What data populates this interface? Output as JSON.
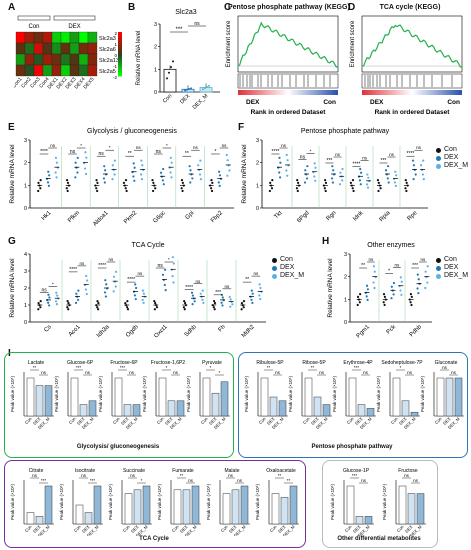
{
  "panels": {
    "A": "A",
    "B": "B",
    "C": "C",
    "D": "D",
    "E": "E",
    "F": "F",
    "G": "G",
    "H": "H",
    "I": "I"
  },
  "heatmap": {
    "groups": [
      "Con",
      "DEX"
    ],
    "rows": [
      "Slc2a3",
      "Slc2a6",
      "Slc2a13",
      "Slc2a5"
    ],
    "cols": [
      "Con1",
      "Con2",
      "Con3",
      "Con4",
      "DEX1",
      "DEX2",
      "DEX3",
      "DEX4",
      "DEX5"
    ],
    "values": [
      [
        2,
        1,
        0.5,
        1.2,
        -1.5,
        -1.8,
        -1,
        -2,
        -1.2
      ],
      [
        0.3,
        -0.5,
        1.5,
        0.2,
        -0.8,
        0.4,
        -1,
        0.6,
        0.9
      ],
      [
        -1,
        0.8,
        -0.3,
        1,
        0.5,
        -0.6,
        0.2,
        -1.2,
        0.7
      ],
      [
        0.5,
        -0.2,
        1.8,
        -1,
        0.9,
        -1.5,
        0.3,
        -0.5,
        1.1
      ]
    ],
    "scale_ticks": [
      "2",
      "1",
      "0",
      "-1",
      "-2"
    ]
  },
  "panelB": {
    "title": "Slc2a3",
    "ylabel": "Relative mRNA level",
    "categories": [
      "Con",
      "DEX",
      "DEX_M"
    ],
    "values": [
      1.0,
      0.12,
      0.2
    ],
    "yticks": [
      "0",
      "1",
      "2",
      "3"
    ],
    "sig": [
      "***",
      "ns"
    ]
  },
  "panelC": {
    "title": "Pentose phosphate pathway (KEGG)",
    "ylabel": "Enrichment score",
    "xlabel": "Rank in ordered Dataset",
    "left": "DEX",
    "right": "Con"
  },
  "panelD": {
    "title": "TCA cycle (KEGG)",
    "ylabel": "Enrichment score",
    "xlabel": "Rank in ordered Dataset",
    "left": "DEX",
    "right": "Con"
  },
  "legend": [
    "Con",
    "DEX",
    "DEX_M"
  ],
  "colors": {
    "con": "#111111",
    "dex": "#1f77b4",
    "dexm": "#5bb0e8",
    "green": "#22b14c",
    "purple": "#7030a0",
    "blue": "#2e75b6"
  },
  "chart_data": [
    {
      "type": "scatter",
      "panel": "E",
      "title": "Glycolysis / gluconeogenesis",
      "ylabel": "Relative mRNA level",
      "categories": [
        "Hk1",
        "Pfkm",
        "Aldoa1",
        "Pkm2",
        "G6pc",
        "Gpi",
        "Fbp2"
      ],
      "series": [
        {
          "name": "Con",
          "values": [
            1.0,
            1.0,
            1.0,
            1.0,
            1.0,
            1.0,
            1.0
          ]
        },
        {
          "name": "DEX",
          "values": [
            1.3,
            1.8,
            1.5,
            1.6,
            1.4,
            1.5,
            1.3
          ]
        },
        {
          "name": "DEX_M",
          "values": [
            1.8,
            2.0,
            1.7,
            1.7,
            1.8,
            1.7,
            1.9
          ]
        }
      ],
      "sig": [
        "****",
        "ns",
        "ns",
        "**",
        "ns",
        "**",
        "*"
      ],
      "ylim": [
        0,
        3
      ],
      "yticks": [
        "0",
        "1",
        "2",
        "3"
      ]
    },
    {
      "type": "scatter",
      "panel": "F",
      "title": "Pentose phosphate pathway",
      "ylabel": "Relative mRNA level",
      "categories": [
        "Tkt",
        "6Pgd",
        "Rgn",
        "Idnk",
        "Rpia",
        "Rpe"
      ],
      "series": [
        {
          "name": "Con",
          "values": [
            1.0,
            1.0,
            1.0,
            1.0,
            1.0,
            1.0
          ]
        },
        {
          "name": "DEX",
          "values": [
            1.8,
            1.5,
            1.5,
            1.4,
            1.5,
            1.7
          ]
        },
        {
          "name": "DEX_M",
          "values": [
            1.9,
            1.6,
            1.4,
            1.2,
            1.3,
            1.7
          ]
        }
      ],
      "sig": [
        "****",
        "ns",
        "***",
        "****",
        "***",
        "****"
      ],
      "ylim": [
        0,
        3
      ],
      "yticks": [
        "0",
        "1",
        "2",
        "3"
      ]
    },
    {
      "type": "scatter",
      "panel": "G",
      "title": "TCA Cycle",
      "ylabel": "Relative mRNA level",
      "categories": [
        "Cs",
        "Aco1",
        "Idh3a",
        "Ogdh",
        "Oxct1",
        "Sdhb",
        "Fh",
        "Mdh2"
      ],
      "series": [
        {
          "name": "Con",
          "values": [
            1.0,
            1.0,
            1.0,
            1.0,
            1.0,
            1.0,
            1.0,
            1.0
          ]
        },
        {
          "name": "DEX",
          "values": [
            1.3,
            1.5,
            2.0,
            1.8,
            2.5,
            1.4,
            1.3,
            1.5
          ]
        },
        {
          "name": "DEX_M",
          "values": [
            1.4,
            2.2,
            2.4,
            1.5,
            3.1,
            1.5,
            1.2,
            1.8
          ]
        }
      ],
      "sig": [
        "ns",
        "****",
        "****",
        "****",
        "ns",
        "****",
        "***",
        "**"
      ],
      "ylim": [
        0,
        4
      ],
      "yticks": [
        "0",
        "1",
        "2",
        "3",
        "4"
      ]
    },
    {
      "type": "scatter",
      "panel": "H",
      "title": "Other enzymes",
      "ylabel": "Relative mRNA level",
      "categories": [
        "Pgm1",
        "Pck",
        "Pdhb"
      ],
      "series": [
        {
          "name": "Con",
          "values": [
            1.0,
            1.0,
            1.0
          ]
        },
        {
          "name": "DEX",
          "values": [
            1.3,
            1.4,
            1.7
          ]
        },
        {
          "name": "DEX_M",
          "values": [
            2.0,
            1.6,
            2.0
          ]
        }
      ],
      "sig": [
        "**",
        "*",
        "***"
      ],
      "ylim": [
        0,
        3
      ],
      "yticks": [
        "0",
        "1",
        "2",
        "3"
      ]
    },
    {
      "type": "bar",
      "panel": "I",
      "ylabel": "Peak value (×10⁵)",
      "categories": [
        "Con",
        "DEX",
        "DEX_M"
      ],
      "metabolites": [
        {
          "name": "Lactate",
          "values": [
            1.0,
            0.8,
            0.8
          ],
          "sig": [
            "**",
            "ns"
          ],
          "group": "glyco"
        },
        {
          "name": "Glucose-6P",
          "values": [
            1.0,
            0.3,
            0.4
          ],
          "sig": [
            "***",
            "ns"
          ],
          "group": "glyco"
        },
        {
          "name": "Fructose-6P",
          "values": [
            1.0,
            0.3,
            0.3
          ],
          "sig": [
            "***",
            "ns"
          ],
          "group": "glyco"
        },
        {
          "name": "Fructose-1,6P2",
          "values": [
            1.0,
            0.4,
            0.4
          ],
          "sig": [
            "*",
            "ns"
          ],
          "group": "glyco"
        },
        {
          "name": "Pyruvate",
          "values": [
            1.0,
            0.6,
            0.9
          ],
          "sig": [
            "*",
            "*"
          ],
          "group": "glyco"
        },
        {
          "name": "Ribulose-5P",
          "values": [
            1.0,
            0.5,
            0.4
          ],
          "sig": [
            "**",
            "ns"
          ],
          "group": "ppp"
        },
        {
          "name": "Ribose-5P",
          "values": [
            1.0,
            0.5,
            0.3
          ],
          "sig": [
            "**",
            "ns"
          ],
          "group": "ppp"
        },
        {
          "name": "Erythrose-4P",
          "values": [
            1.0,
            0.3,
            0.2
          ],
          "sig": [
            "***",
            "ns"
          ],
          "group": "ppp"
        },
        {
          "name": "Sedoheptulose-7P",
          "values": [
            1.0,
            0.4,
            0.1
          ],
          "sig": [
            "*",
            "ns"
          ],
          "group": "ppp"
        },
        {
          "name": "Gluconate",
          "values": [
            1.0,
            1.0,
            1.0
          ],
          "sig": [
            "ns",
            "ns"
          ],
          "group": "ppp"
        },
        {
          "name": "Citrate",
          "values": [
            0.3,
            0.2,
            1.0
          ],
          "sig": [
            "ns",
            "***"
          ],
          "group": "tca"
        },
        {
          "name": "Isocitrate",
          "values": [
            0.5,
            0.3,
            1.0
          ],
          "sig": [
            "ns",
            "***"
          ],
          "group": "tca"
        },
        {
          "name": "Succinate",
          "values": [
            0.8,
            0.9,
            1.0
          ],
          "sig": [
            "ns",
            "*"
          ],
          "group": "tca"
        },
        {
          "name": "Fumarate",
          "values": [
            0.9,
            0.9,
            1.0
          ],
          "sig": [
            "**",
            "ns"
          ],
          "group": "tca"
        },
        {
          "name": "Malate",
          "values": [
            0.8,
            0.9,
            1.0
          ],
          "sig": [
            "ns",
            "ns"
          ],
          "group": "tca"
        },
        {
          "name": "Oxaloacetate",
          "values": [
            0.8,
            0.7,
            1.0
          ],
          "sig": [
            "**",
            "**"
          ],
          "group": "tca"
        },
        {
          "name": "Glucose-1P",
          "values": [
            1.0,
            0.2,
            0.2
          ],
          "sig": [
            "***",
            "ns"
          ],
          "group": "other"
        },
        {
          "name": "Fructose",
          "values": [
            1.0,
            0.8,
            0.8
          ],
          "sig": [
            "ns",
            "ns"
          ],
          "group": "other"
        }
      ]
    }
  ],
  "boxes": {
    "glyco": "Glycolysis/ gluconeogenesis",
    "ppp": "Pentose phosphate pathway",
    "tca": "TCA Cycle",
    "other": "Other differential metabolites"
  }
}
